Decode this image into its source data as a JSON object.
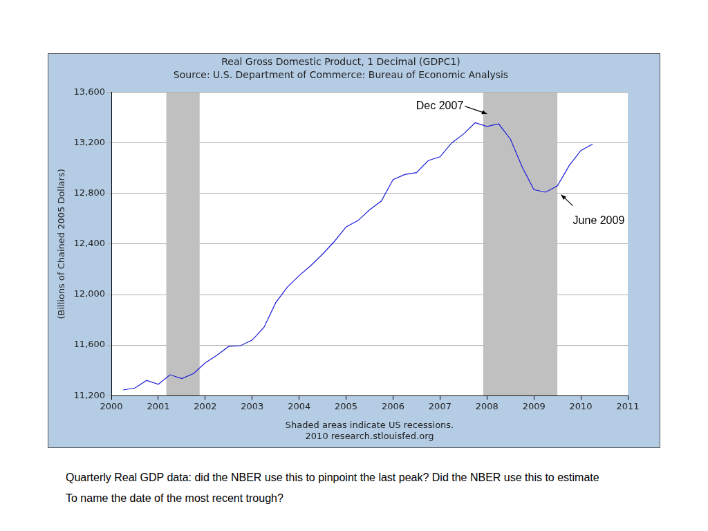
{
  "chart_data": {
    "type": "line",
    "title": "Real Gross Domestic Product, 1 Decimal (GDPC1)",
    "subtitle": "Source: U.S. Department of Commerce: Bureau of Economic Analysis",
    "y_label": "(Billions of Chained 2005 Dollars)",
    "x_label": [
      "Shaded areas indicate US recessions.",
      "2010 research.stlouisfed.org"
    ],
    "x": [
      2000.25,
      2000.5,
      2000.75,
      2001.0,
      2001.25,
      2001.5,
      2001.75,
      2002.0,
      2002.25,
      2002.5,
      2002.75,
      2003.0,
      2003.25,
      2003.5,
      2003.75,
      2004.0,
      2004.25,
      2004.5,
      2004.75,
      2005.0,
      2005.25,
      2005.5,
      2005.75,
      2006.0,
      2006.25,
      2006.5,
      2006.75,
      2007.0,
      2007.25,
      2007.5,
      2007.75,
      2008.0,
      2008.25,
      2008.5,
      2008.75,
      2009.0,
      2009.25,
      2009.5,
      2009.75,
      2010.0,
      2010.25
    ],
    "values": [
      11245,
      11260,
      11320,
      11290,
      11365,
      11335,
      11375,
      11460,
      11520,
      11590,
      11595,
      11640,
      11740,
      11935,
      12060,
      12150,
      12230,
      12320,
      12420,
      12535,
      12585,
      12670,
      12740,
      12910,
      12950,
      12965,
      13060,
      13090,
      13200,
      13270,
      13360,
      13330,
      13350,
      13230,
      13010,
      12830,
      12810,
      12860,
      13020,
      13140,
      13190
    ],
    "color": "#1a1adc",
    "xlim": [
      2000,
      2011
    ],
    "xticks": [
      2000,
      2001,
      2002,
      2003,
      2004,
      2005,
      2006,
      2007,
      2008,
      2009,
      2010,
      2011
    ],
    "ylim": [
      11200,
      13600
    ],
    "yticks": [
      {
        "value": 11200,
        "label": "11,200"
      },
      {
        "value": 11600,
        "label": "11,600"
      },
      {
        "value": 12000,
        "label": "12,000"
      },
      {
        "value": 12400,
        "label": "12,400"
      },
      {
        "value": 12800,
        "label": "12,800"
      },
      {
        "value": 13200,
        "label": "13,200"
      },
      {
        "value": 13600,
        "label": "13,600"
      }
    ],
    "grid": true,
    "recessions": [
      [
        2001.17,
        2001.88
      ],
      [
        2007.92,
        2009.5
      ]
    ],
    "annotations": [
      {
        "text": "Dec 2007",
        "x": 2008.0,
        "y": 13430
      },
      {
        "text": "June 2009",
        "x": 2009.58,
        "y": 12790
      }
    ]
  },
  "page": {
    "caption": [
      "Quarterly Real GDP data: did the NBER use this to pinpoint the last peak? Did the NBER use this to estimate",
      "To name the date of the most recent trough?"
    ]
  }
}
